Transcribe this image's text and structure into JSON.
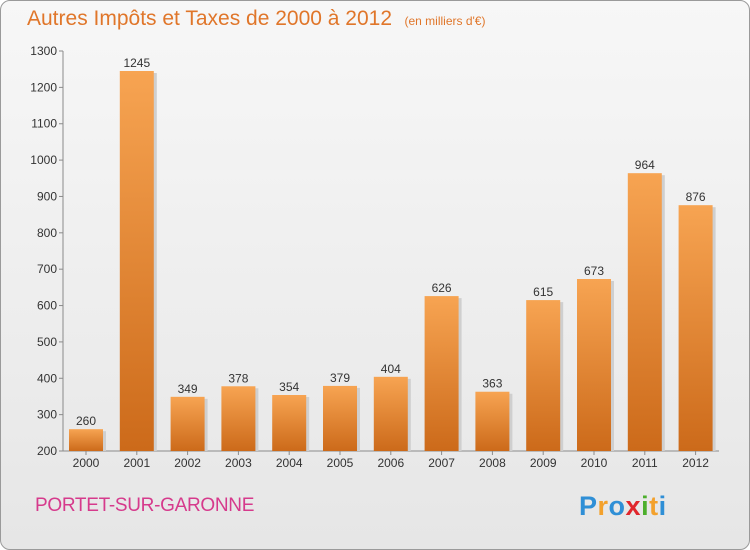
{
  "header": {
    "title": "Autres Impôts et Taxes de 2000 à 2012",
    "subtitle": "(en milliers d'€)"
  },
  "footer": {
    "city": "PORTET-SUR-GARONNE",
    "logo_letters": [
      "P",
      "r",
      "o",
      "x",
      "i",
      "t",
      "i"
    ],
    "logo_colors": [
      "#2f8fd6",
      "#f3a12c",
      "#2f8fd6",
      "#e0262c",
      "#4caf2c",
      "#f3a12c",
      "#2f8fd6"
    ]
  },
  "chart_data": {
    "type": "bar",
    "title": "Autres Impôts et Taxes de 2000 à 2012",
    "subtitle": "(en milliers d'€)",
    "categories": [
      "2000",
      "2001",
      "2002",
      "2003",
      "2004",
      "2005",
      "2006",
      "2007",
      "2008",
      "2009",
      "2010",
      "2011",
      "2012"
    ],
    "values": [
      260,
      1245,
      349,
      378,
      354,
      379,
      404,
      626,
      363,
      615,
      673,
      964,
      876
    ],
    "ylim": [
      200,
      1300
    ],
    "yticks": [
      200,
      300,
      400,
      500,
      600,
      700,
      800,
      900,
      1000,
      1100,
      1200,
      1300
    ],
    "grid": false,
    "bar_color_top": "#f7a452",
    "bar_color_bottom": "#cc6a1a"
  }
}
